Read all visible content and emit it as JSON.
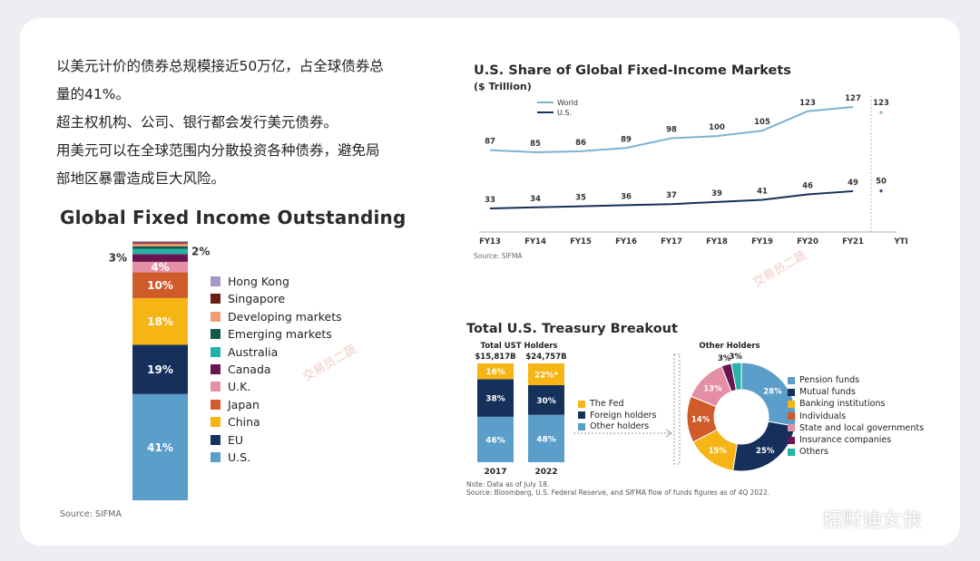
{
  "intro": {
    "lines": [
      "以美元计价的债券总规模接近50万亿，占全球债券总",
      "量的41%。",
      "超主权机构、公司、银行都会发行美元债券。",
      "用美元可以在全球范围内分散投资各种债券，避免局",
      "部地区暴雷造成巨大风险。"
    ]
  },
  "watermark": "交易员二蔬",
  "brand": "招财迪女侠",
  "colors": {
    "us": "#5a9ec9",
    "eu": "#15305a",
    "china": "#f7b415",
    "japan": "#cf5a2a",
    "uk": "#e48fa6",
    "canada": "#6a1552",
    "australia": "#24b3a6",
    "emerging": "#0f5a4a",
    "developing": "#f39a72",
    "singapore": "#6a1d12",
    "hongkong": "#a796c9",
    "world_line": "#7eb2d2",
    "us_line": "#15305a"
  },
  "chart_data": [
    {
      "id": "gfi",
      "type": "bar",
      "title": "Global Fixed Income Outstanding",
      "source": "Source: SIFMA",
      "stacked": true,
      "segments": [
        {
          "name": "U.S.",
          "value": 41,
          "label": "41%",
          "color": "#5a9ec9"
        },
        {
          "name": "EU",
          "value": 19,
          "label": "19%",
          "color": "#15305a"
        },
        {
          "name": "China",
          "value": 18,
          "label": "18%",
          "color": "#f7b415"
        },
        {
          "name": "Japan",
          "value": 10,
          "label": "10%",
          "color": "#cf5a2a"
        },
        {
          "name": "U.K.",
          "value": 4,
          "label": "4%",
          "color": "#e48fa6"
        },
        {
          "name": "Canada",
          "value": 3,
          "label": "3%",
          "color": "#6a1552"
        },
        {
          "name": "Australia",
          "value": 2,
          "label": "2%",
          "color": "#24b3a6"
        },
        {
          "name": "Emerging markets",
          "value": 1,
          "label": "",
          "color": "#0f5a4a"
        },
        {
          "name": "Developing markets",
          "value": 1,
          "label": "",
          "color": "#f39a72"
        },
        {
          "name": "Singapore",
          "value": 0.5,
          "label": "",
          "color": "#6a1d12"
        },
        {
          "name": "Hong Kong",
          "value": 0.5,
          "label": "",
          "color": "#a796c9"
        }
      ],
      "legend_order": [
        "Hong Kong",
        "Singapore",
        "Developing markets",
        "Emerging markets",
        "Australia",
        "Canada",
        "U.K.",
        "Japan",
        "China",
        "EU",
        "U.S."
      ]
    },
    {
      "id": "share",
      "type": "line",
      "title": "U.S. Share of Global Fixed-Income Markets",
      "subtitle": "($ Trillion)",
      "source": "Source: SIFMA",
      "categories": [
        "FY13",
        "FY14",
        "FY15",
        "FY16",
        "FY17",
        "FY18",
        "FY19",
        "FY20",
        "FY21",
        "YTD"
      ],
      "series": [
        {
          "name": "World",
          "values": [
            87,
            85,
            86,
            89,
            98,
            100,
            105,
            123,
            127,
            123
          ]
        },
        {
          "name": "U.S.",
          "values": [
            33,
            34,
            35,
            36,
            37,
            39,
            41,
            46,
            49,
            50
          ]
        }
      ]
    },
    {
      "id": "ust",
      "type": "bar",
      "title": "Total U.S. Treasury Breakout",
      "subtitle": "Total UST Holders",
      "categories": [
        "2017",
        "2022"
      ],
      "totals": [
        "$15,817B",
        "$24,757B"
      ],
      "series": [
        {
          "name": "Other holders",
          "values": [
            46,
            48
          ],
          "labels": [
            "46%",
            "48%"
          ],
          "color": "#5a9ec9"
        },
        {
          "name": "Foreign holders",
          "values": [
            38,
            30
          ],
          "labels": [
            "38%",
            "30%"
          ],
          "color": "#15305a"
        },
        {
          "name": "The Fed",
          "values": [
            16,
            22
          ],
          "labels": [
            "16%",
            "22%*"
          ],
          "color": "#f7b415"
        }
      ],
      "legend": [
        "The Fed",
        "Foreign holders",
        "Other holders"
      ]
    },
    {
      "id": "other",
      "type": "pie",
      "title": "Other Holders",
      "slices": [
        {
          "name": "Pension funds",
          "value": 28,
          "label": "28%",
          "color": "#5a9ec9"
        },
        {
          "name": "Mutual funds",
          "value": 25,
          "label": "25%",
          "color": "#15305a"
        },
        {
          "name": "Banking institutions",
          "value": 15,
          "label": "15%",
          "color": "#f7b415"
        },
        {
          "name": "Individuals",
          "value": 14,
          "label": "14%",
          "color": "#cf5a2a"
        },
        {
          "name": "State and local governments",
          "value": 13,
          "label": "13%",
          "color": "#e48fa6"
        },
        {
          "name": "Insurance companies",
          "value": 3,
          "label": "3%",
          "color": "#6a1552"
        },
        {
          "name": "Others",
          "value": 3,
          "label": "3%",
          "color": "#24b3a6"
        }
      ],
      "note1": "Note: Data as of July 18.",
      "note2": "Source: Bloomberg, U.S. Federal Reserve, and SIFMA flow of funds figures as of 4Q 2022."
    }
  ]
}
